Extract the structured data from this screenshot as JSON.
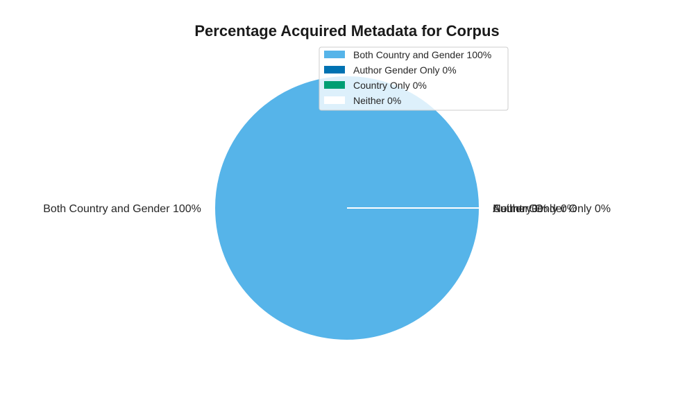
{
  "chart_data": {
    "type": "pie",
    "title": "Percentage Acquired Metadata for Corpus",
    "categories": [
      "Both Country and Gender 100%",
      "Author Gender Only 0%",
      "Country Only 0%",
      "Neither 0%"
    ],
    "values": [
      100,
      0,
      0,
      0
    ],
    "colors": [
      "#56B4E9",
      "#0072B2",
      "#009E73",
      "#FFFFFF"
    ],
    "legend": {
      "placement": "top-right",
      "entries": [
        "Both Country and Gender 100%",
        "Author Gender Only 0%",
        "Country Only 0%",
        "Neither 0%"
      ]
    },
    "start_angle_deg": 0
  }
}
